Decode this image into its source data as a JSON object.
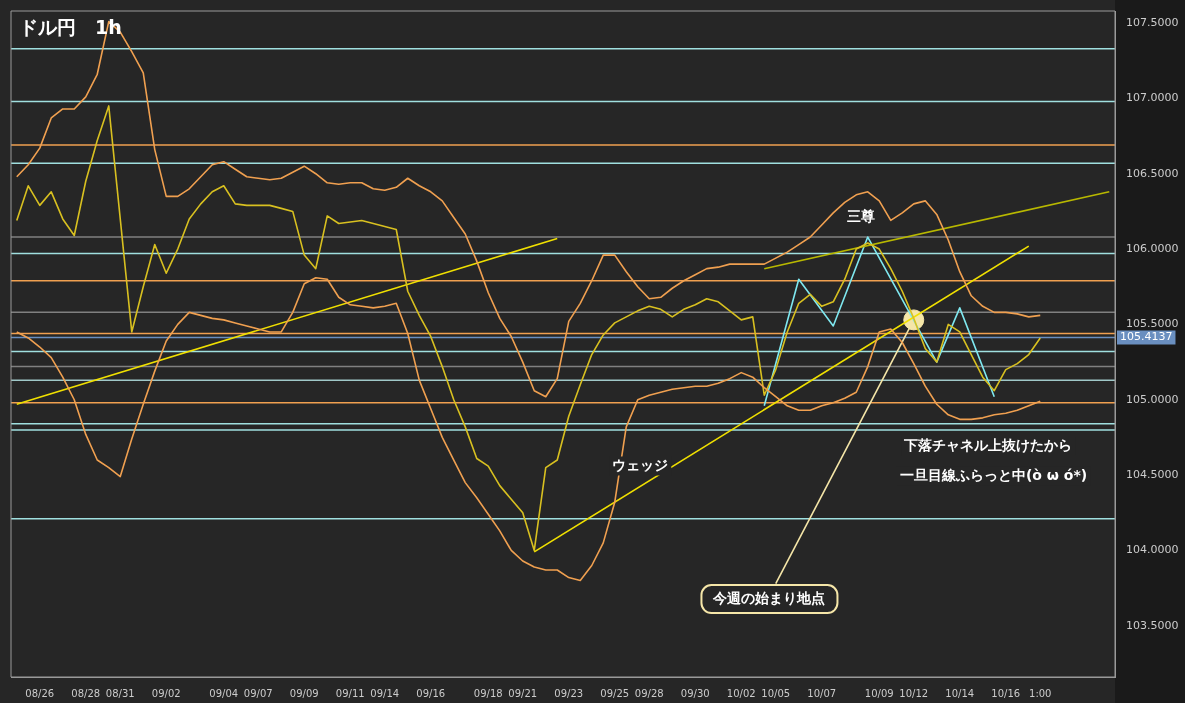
{
  "chart_data": {
    "type": "line",
    "title": "ドル円　1h",
    "categories": [
      null,
      null,
      "08/26",
      null,
      null,
      null,
      "08/28",
      null,
      null,
      "08/31",
      null,
      null,
      null,
      "09/02",
      null,
      null,
      null,
      null,
      "09/04",
      null,
      null,
      "09/07",
      null,
      null,
      null,
      "09/09",
      null,
      null,
      null,
      "09/11",
      null,
      null,
      "09/14",
      null,
      null,
      null,
      "09/16",
      null,
      null,
      null,
      null,
      "09/18",
      null,
      null,
      "09/21",
      null,
      null,
      null,
      "09/23",
      null,
      null,
      null,
      "09/25",
      null,
      null,
      "09/28",
      null,
      null,
      null,
      "09/30",
      null,
      null,
      null,
      "10/02",
      null,
      null,
      "10/05",
      null,
      null,
      null,
      "10/07",
      null,
      null,
      null,
      null,
      "10/09",
      null,
      null,
      "10/12",
      null,
      null,
      null,
      "10/14",
      null,
      null,
      null,
      "10/16",
      null,
      null,
      "1:00",
      null,
      null,
      null,
      null,
      null,
      null
    ],
    "ylim": [
      103.16,
      107.58
    ],
    "yticks": [
      {
        "value": 103.5,
        "label": "103.5000"
      },
      {
        "value": 104,
        "label": "104.0000"
      },
      {
        "value": 104.5,
        "label": "104.5000"
      },
      {
        "value": 105,
        "label": "105.0000"
      },
      {
        "value": 105.5,
        "label": "105.5000"
      },
      {
        "value": 106,
        "label": "106.0000"
      },
      {
        "value": 106.5,
        "label": "106.5000"
      },
      {
        "value": 107,
        "label": "107.0000"
      },
      {
        "value": 107.5,
        "label": "107.5000"
      }
    ],
    "grid": false,
    "legend": false,
    "series": [
      {
        "color": "#f0a050",
        "values": [
          106.48,
          106.56,
          106.67,
          106.87,
          106.93,
          106.93,
          107.01,
          107.16,
          107.51,
          107.44,
          107.31,
          107.17,
          106.66,
          106.35,
          106.35,
          106.4,
          106.48,
          106.56,
          106.58,
          106.53,
          106.48,
          106.47,
          106.46,
          106.47,
          106.51,
          106.55,
          106.5,
          106.44,
          106.43,
          106.44,
          106.44,
          106.4,
          106.39,
          106.41,
          106.47,
          106.42,
          106.38,
          106.32,
          106.21,
          106.1,
          105.92,
          105.71,
          105.54,
          105.42,
          105.25,
          105.06,
          105.02,
          105.14,
          105.52,
          105.64,
          105.79,
          105.96,
          105.96,
          105.85,
          105.75,
          105.67,
          105.68,
          105.74,
          105.79,
          105.83,
          105.87,
          105.88,
          105.9,
          105.9,
          105.9,
          105.9,
          105.94,
          105.98,
          106.03,
          106.08,
          106.16,
          106.24,
          106.31,
          106.36,
          106.38,
          106.32,
          106.19,
          106.24,
          106.3,
          106.32,
          106.23,
          106.06,
          105.85,
          105.69,
          105.62,
          105.58,
          105.58,
          105.57,
          105.55,
          105.56,
          null,
          null,
          null,
          null,
          null,
          null
        ]
      },
      {
        "color": "#f0a050",
        "values": [
          105.45,
          105.41,
          105.35,
          105.28,
          105.15,
          105.0,
          104.77,
          104.6,
          104.55,
          104.49,
          104.74,
          104.97,
          105.19,
          105.39,
          105.5,
          105.58,
          105.56,
          105.54,
          105.53,
          105.51,
          105.49,
          105.47,
          105.45,
          105.45,
          105.58,
          105.77,
          105.81,
          105.8,
          105.68,
          105.63,
          105.62,
          105.61,
          105.62,
          105.64,
          105.44,
          105.13,
          104.94,
          104.75,
          104.6,
          104.45,
          104.35,
          104.24,
          104.13,
          104.0,
          103.93,
          103.89,
          103.87,
          103.87,
          103.82,
          103.8,
          103.9,
          104.05,
          104.32,
          104.82,
          105.0,
          105.03,
          105.05,
          105.07,
          105.08,
          105.09,
          105.09,
          105.11,
          105.14,
          105.18,
          105.15,
          105.08,
          105.02,
          104.96,
          104.93,
          104.93,
          104.96,
          104.98,
          105.01,
          105.05,
          105.22,
          105.45,
          105.47,
          105.38,
          105.24,
          105.09,
          104.97,
          104.9,
          104.87,
          104.87,
          104.88,
          104.9,
          104.91,
          104.93,
          104.96,
          104.99,
          null,
          null,
          null,
          null,
          null,
          null
        ]
      },
      {
        "color": "#d8c020",
        "values": [
          106.19,
          106.42,
          106.29,
          106.38,
          106.2,
          106.09,
          106.45,
          106.72,
          106.95,
          106.2,
          105.45,
          105.75,
          106.03,
          105.84,
          106.0,
          106.2,
          106.3,
          106.38,
          106.42,
          106.3,
          106.29,
          106.29,
          106.29,
          106.27,
          106.25,
          105.96,
          105.87,
          106.22,
          106.17,
          106.18,
          106.19,
          106.17,
          106.15,
          106.13,
          105.72,
          105.56,
          105.42,
          105.22,
          105.0,
          104.82,
          104.61,
          104.56,
          104.43,
          104.34,
          104.25,
          104.0,
          104.55,
          104.6,
          104.89,
          105.1,
          105.3,
          105.43,
          105.51,
          105.55,
          105.59,
          105.62,
          105.6,
          105.55,
          105.6,
          105.63,
          105.67,
          105.65,
          105.59,
          105.53,
          105.55,
          105.03,
          105.2,
          105.45,
          105.64,
          105.7,
          105.62,
          105.65,
          105.8,
          106.0,
          106.04,
          106.0,
          105.87,
          105.72,
          105.54,
          105.34,
          105.25,
          105.5,
          105.45,
          105.3,
          105.15,
          105.06,
          105.2,
          105.24,
          105.3,
          105.41,
          null,
          null,
          null,
          null,
          null,
          null
        ]
      },
      {
        "color": "#f0e000",
        "values": [
          104.97,
          null,
          null,
          null,
          null,
          null,
          null,
          null,
          null,
          null,
          null,
          null,
          null,
          null,
          null,
          null,
          null,
          null,
          null,
          null,
          null,
          null,
          null,
          null,
          null,
          null,
          null,
          null,
          null,
          null,
          null,
          null,
          null,
          null,
          null,
          null,
          null,
          null,
          null,
          null,
          null,
          null,
          null,
          null,
          null,
          null,
          null,
          106.07,
          null,
          null,
          null,
          null,
          null,
          null,
          null,
          null,
          null,
          null,
          null,
          null,
          null,
          null,
          null,
          null,
          null,
          null,
          null,
          null,
          null,
          null,
          null,
          null,
          null,
          null,
          null,
          null,
          null,
          null,
          null,
          null,
          null,
          null,
          null,
          null,
          null,
          null,
          null,
          null,
          null,
          null,
          null,
          null,
          null,
          null,
          null,
          null
        ]
      },
      {
        "color": "#f0e000",
        "values": [
          null,
          null,
          null,
          null,
          null,
          null,
          null,
          null,
          null,
          null,
          null,
          null,
          null,
          null,
          null,
          null,
          null,
          null,
          null,
          null,
          null,
          null,
          null,
          null,
          null,
          null,
          null,
          null,
          null,
          null,
          null,
          null,
          null,
          null,
          null,
          null,
          null,
          null,
          null,
          null,
          null,
          null,
          null,
          null,
          null,
          103.99,
          null,
          null,
          null,
          null,
          null,
          null,
          null,
          null,
          null,
          null,
          null,
          null,
          null,
          null,
          null,
          null,
          null,
          null,
          null,
          null,
          null,
          null,
          null,
          null,
          null,
          null,
          null,
          null,
          null,
          null,
          null,
          null,
          null,
          null,
          null,
          null,
          null,
          null,
          null,
          null,
          null,
          null,
          106.02,
          null,
          null,
          null,
          null,
          null,
          null,
          null
        ]
      },
      {
        "color": "#b8b800",
        "values": [
          null,
          null,
          null,
          null,
          null,
          null,
          null,
          null,
          null,
          null,
          null,
          null,
          null,
          null,
          null,
          null,
          null,
          null,
          null,
          null,
          null,
          null,
          null,
          null,
          null,
          null,
          null,
          null,
          null,
          null,
          null,
          null,
          null,
          null,
          null,
          null,
          null,
          null,
          null,
          null,
          null,
          null,
          null,
          null,
          null,
          null,
          null,
          null,
          null,
          null,
          null,
          null,
          null,
          null,
          null,
          null,
          null,
          null,
          null,
          null,
          null,
          null,
          null,
          null,
          null,
          105.87,
          null,
          null,
          null,
          null,
          null,
          null,
          null,
          null,
          null,
          null,
          null,
          null,
          null,
          null,
          null,
          null,
          null,
          null,
          null,
          null,
          null,
          null,
          null,
          null,
          null,
          null,
          null,
          null,
          null,
          106.38
        ]
      },
      {
        "color": "#7fe8f0",
        "values": [
          null,
          null,
          null,
          null,
          null,
          null,
          null,
          null,
          null,
          null,
          null,
          null,
          null,
          null,
          null,
          null,
          null,
          null,
          null,
          null,
          null,
          null,
          null,
          null,
          null,
          null,
          null,
          null,
          null,
          null,
          null,
          null,
          null,
          null,
          null,
          null,
          null,
          null,
          null,
          null,
          null,
          null,
          null,
          null,
          null,
          null,
          null,
          null,
          null,
          null,
          null,
          null,
          null,
          null,
          null,
          null,
          null,
          null,
          null,
          null,
          null,
          null,
          null,
          null,
          null,
          104.96,
          null,
          null,
          105.8,
          null,
          null,
          105.49,
          null,
          null,
          106.08,
          null,
          null,
          null,
          null,
          null,
          105.25,
          null,
          105.61,
          null,
          null,
          105.02,
          null,
          null,
          null,
          null,
          null,
          null,
          null,
          null,
          null,
          null
        ]
      },
      {
        "color": "#f5e6a8",
        "values": [
          null,
          null,
          null,
          null,
          null,
          null,
          null,
          null,
          null,
          null,
          null,
          null,
          null,
          null,
          null,
          null,
          null,
          null,
          null,
          null,
          null,
          null,
          null,
          null,
          null,
          null,
          null,
          null,
          null,
          null,
          null,
          null,
          null,
          null,
          null,
          null,
          null,
          null,
          null,
          null,
          null,
          null,
          null,
          null,
          null,
          null,
          null,
          null,
          null,
          null,
          null,
          null,
          null,
          null,
          null,
          null,
          null,
          null,
          null,
          null,
          null,
          null,
          null,
          null,
          null,
          null,
          103.78,
          null,
          null,
          null,
          null,
          null,
          null,
          null,
          null,
          null,
          null,
          null,
          105.53,
          null,
          null,
          null,
          null,
          null,
          null,
          null,
          null,
          null,
          null,
          null,
          null,
          null,
          null,
          null,
          null,
          null
        ]
      },
      {
        "type": "scatter",
        "marker": "circle",
        "color": "#f5e6a8",
        "values": [
          null,
          null,
          null,
          null,
          null,
          null,
          null,
          null,
          null,
          null,
          null,
          null,
          null,
          null,
          null,
          null,
          null,
          null,
          null,
          null,
          null,
          null,
          null,
          null,
          null,
          null,
          null,
          null,
          null,
          null,
          null,
          null,
          null,
          null,
          null,
          null,
          null,
          null,
          null,
          null,
          null,
          null,
          null,
          null,
          null,
          null,
          null,
          null,
          null,
          null,
          null,
          null,
          null,
          null,
          null,
          null,
          null,
          null,
          null,
          null,
          null,
          null,
          null,
          null,
          null,
          null,
          null,
          null,
          null,
          null,
          null,
          null,
          null,
          null,
          null,
          null,
          null,
          null,
          105.53,
          null,
          null,
          null,
          null,
          null,
          null,
          null,
          null,
          null,
          null,
          null,
          null,
          null,
          null,
          null,
          null,
          null
        ]
      }
    ],
    "ref_lines": [
      {
        "axis": "y",
        "value": 107.33,
        "color": "#a0e0e0"
      },
      {
        "axis": "y",
        "value": 106.98,
        "color": "#a0e0e0"
      },
      {
        "axis": "y",
        "value": 106.69,
        "color": "#f0a050"
      },
      {
        "axis": "y",
        "value": 106.57,
        "color": "#a0e0e0"
      },
      {
        "axis": "y",
        "value": 106.08,
        "color": "#808080"
      },
      {
        "axis": "y",
        "value": 105.97,
        "color": "#a0e0e0"
      },
      {
        "axis": "y",
        "value": 105.79,
        "color": "#f0a050"
      },
      {
        "axis": "y",
        "value": 105.58,
        "color": "#808080"
      },
      {
        "axis": "y",
        "value": 105.44,
        "color": "#f0a050"
      },
      {
        "axis": "y",
        "value": 105.4137,
        "color": "#6a8fc0",
        "label": "105.4137"
      },
      {
        "axis": "y",
        "value": 105.32,
        "color": "#a0e0e0"
      },
      {
        "axis": "y",
        "value": 105.22,
        "color": "#808080"
      },
      {
        "axis": "y",
        "value": 105.13,
        "color": "#a0c8c8"
      },
      {
        "axis": "y",
        "value": 104.98,
        "color": "#f0a050"
      },
      {
        "axis": "y",
        "value": 104.84,
        "color": "#a0e0e0"
      },
      {
        "axis": "y",
        "value": 104.8,
        "color": "#a0e0e0"
      },
      {
        "axis": "y",
        "value": 104.21,
        "color": "#a0e0e0"
      }
    ],
    "annotations": [
      "三尊",
      "ウェッジ",
      "下落チャネル上抜けたから",
      "一旦目線ふらっと中(ò ω ó*)",
      "今週の始まり地点"
    ]
  }
}
